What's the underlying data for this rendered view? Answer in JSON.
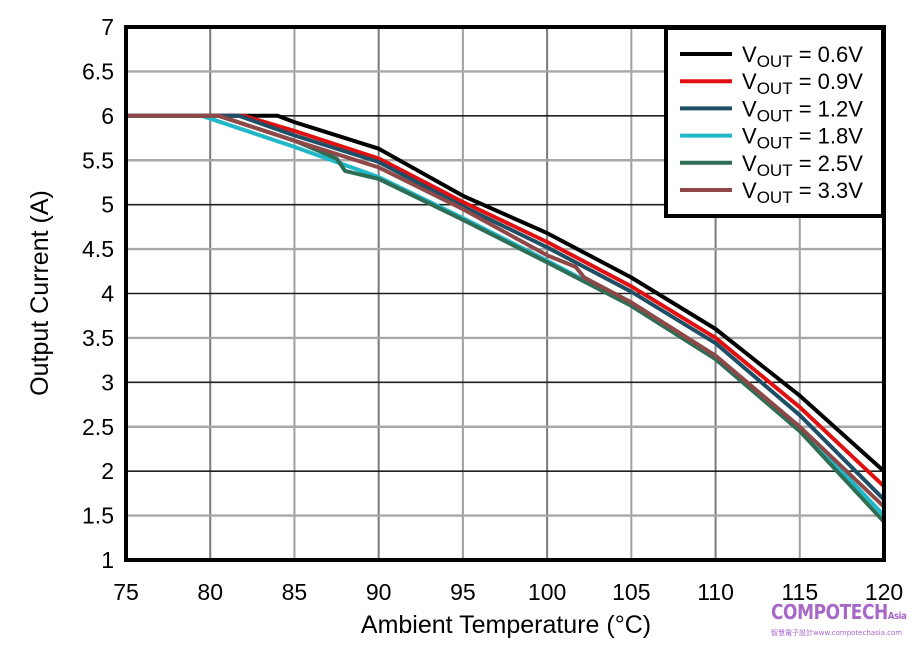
{
  "chart_data": {
    "type": "line",
    "title": "",
    "xlabel": "Ambient Temperature (°C)",
    "ylabel": "Output Current (A)",
    "xlim": [
      75,
      120
    ],
    "ylim": [
      1,
      7
    ],
    "grid": true,
    "legend_position": "top-right",
    "x_ticks": [
      "75",
      "80",
      "85",
      "90",
      "95",
      "100",
      "105",
      "110",
      "115",
      "120"
    ],
    "y_ticks": [
      "1",
      "1.5",
      "2",
      "2.5",
      "3",
      "3.5",
      "4",
      "4.5",
      "5",
      "5.5",
      "6",
      "6.5",
      "7"
    ],
    "series": [
      {
        "name": "VOUT = 0.6V",
        "label_main": "V",
        "label_sub": "OUT",
        "label_rest": " = 0.6V",
        "color": "#000000",
        "x": [
          75,
          84,
          85,
          90,
          95,
          100,
          105,
          110,
          115,
          120
        ],
        "y": [
          6,
          6,
          5.93,
          5.63,
          5.1,
          4.68,
          4.18,
          3.6,
          2.85,
          2.0
        ]
      },
      {
        "name": "VOUT = 0.9V",
        "label_main": "V",
        "label_sub": "OUT",
        "label_rest": " = 0.9V",
        "color": "#e01010",
        "x": [
          75,
          82,
          85,
          90,
          95,
          100,
          105,
          110,
          115,
          120
        ],
        "y": [
          6,
          6,
          5.83,
          5.52,
          5.03,
          4.58,
          4.08,
          3.5,
          2.72,
          1.83
        ]
      },
      {
        "name": "VOUT = 1.2V",
        "label_main": "V",
        "label_sub": "OUT",
        "label_rest": " = 1.2V",
        "color": "#1e4f66",
        "x": [
          75,
          81.7,
          85,
          90,
          95,
          100,
          105,
          110,
          115,
          120
        ],
        "y": [
          6,
          6,
          5.78,
          5.48,
          4.98,
          4.52,
          4.02,
          3.44,
          2.63,
          1.68
        ]
      },
      {
        "name": "VOUT = 1.8V",
        "label_main": "V",
        "label_sub": "OUT",
        "label_rest": " = 1.8V",
        "color": "#20b8c8",
        "x": [
          75,
          79.5,
          85,
          90,
          95,
          100,
          105,
          110,
          115,
          120
        ],
        "y": [
          6,
          6,
          5.65,
          5.31,
          4.85,
          4.37,
          3.87,
          3.27,
          2.5,
          1.5
        ]
      },
      {
        "name": "VOUT = 2.5V",
        "label_main": "V",
        "label_sub": "OUT",
        "label_rest": " = 2.5V",
        "color": "#2f6e55",
        "x": [
          75,
          80.5,
          85,
          87.5,
          88,
          90,
          95,
          100,
          105,
          110,
          115,
          120
        ],
        "y": [
          6,
          6,
          5.72,
          5.52,
          5.38,
          5.29,
          4.83,
          4.35,
          3.86,
          3.26,
          2.45,
          1.43
        ]
      },
      {
        "name": "VOUT = 3.3V",
        "label_main": "V",
        "label_sub": "OUT",
        "label_rest": " = 3.3V",
        "color": "#8e4848",
        "x": [
          75,
          80.5,
          85,
          90,
          95,
          100,
          101.7,
          102.2,
          105,
          110,
          115,
          120
        ],
        "y": [
          6,
          6,
          5.72,
          5.42,
          4.95,
          4.43,
          4.3,
          4.18,
          3.9,
          3.3,
          2.5,
          1.6
        ]
      }
    ]
  },
  "watermark": {
    "brand": "COMPOTECH",
    "brand_suffix": "Asia",
    "tagline": "智慧電子設計www.compotechasia.com"
  }
}
